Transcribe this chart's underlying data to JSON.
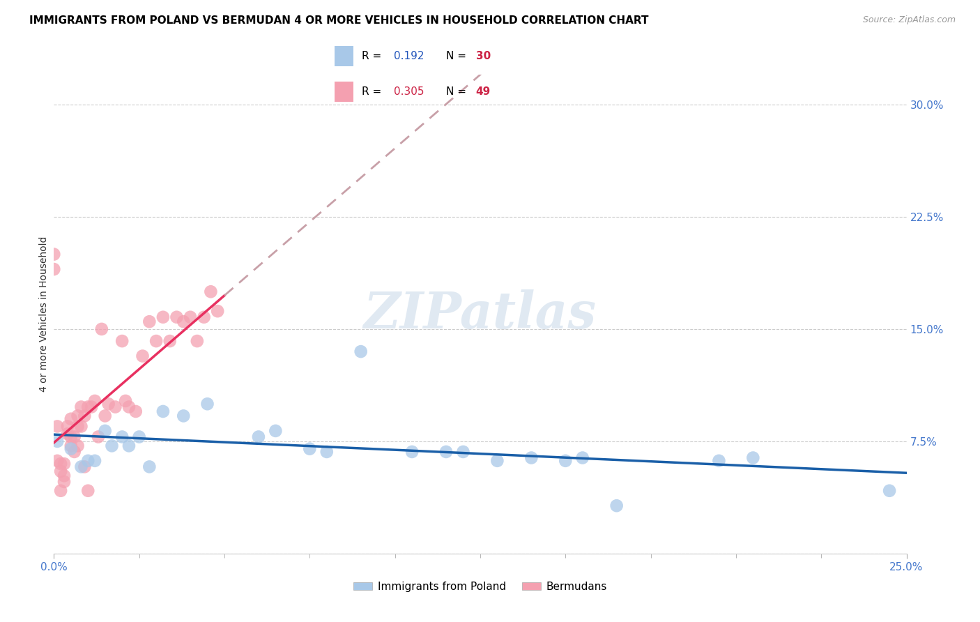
{
  "title": "IMMIGRANTS FROM POLAND VS BERMUDAN 4 OR MORE VEHICLES IN HOUSEHOLD CORRELATION CHART",
  "source": "Source: ZipAtlas.com",
  "ylabel": "4 or more Vehicles in Household",
  "xlim": [
    0.0,
    0.25
  ],
  "ylim": [
    0.0,
    0.32
  ],
  "xtick_positions": [
    0.0,
    0.25
  ],
  "xtick_labels": [
    "0.0%",
    "25.0%"
  ],
  "ytick_positions": [
    0.0,
    0.075,
    0.15,
    0.225,
    0.3
  ],
  "ytick_labels": [
    "",
    "7.5%",
    "15.0%",
    "22.5%",
    "30.0%"
  ],
  "poland_x": [
    0.001,
    0.005,
    0.008,
    0.01,
    0.012,
    0.015,
    0.017,
    0.02,
    0.022,
    0.025,
    0.028,
    0.032,
    0.038,
    0.045,
    0.06,
    0.065,
    0.075,
    0.08,
    0.09,
    0.105,
    0.115,
    0.12,
    0.13,
    0.14,
    0.15,
    0.155,
    0.165,
    0.195,
    0.205,
    0.245
  ],
  "poland_y": [
    0.075,
    0.07,
    0.058,
    0.062,
    0.062,
    0.082,
    0.072,
    0.078,
    0.072,
    0.078,
    0.058,
    0.095,
    0.092,
    0.1,
    0.078,
    0.082,
    0.07,
    0.068,
    0.135,
    0.068,
    0.068,
    0.068,
    0.062,
    0.064,
    0.062,
    0.064,
    0.032,
    0.062,
    0.064,
    0.042
  ],
  "bermuda_x": [
    0.0,
    0.0,
    0.001,
    0.001,
    0.002,
    0.002,
    0.002,
    0.003,
    0.003,
    0.003,
    0.004,
    0.004,
    0.005,
    0.005,
    0.005,
    0.006,
    0.006,
    0.007,
    0.007,
    0.007,
    0.008,
    0.008,
    0.009,
    0.009,
    0.01,
    0.01,
    0.011,
    0.012,
    0.013,
    0.014,
    0.015,
    0.016,
    0.018,
    0.02,
    0.021,
    0.022,
    0.024,
    0.026,
    0.028,
    0.03,
    0.032,
    0.034,
    0.036,
    0.038,
    0.04,
    0.042,
    0.044,
    0.046,
    0.048
  ],
  "bermuda_y": [
    0.2,
    0.19,
    0.085,
    0.062,
    0.042,
    0.055,
    0.06,
    0.048,
    0.052,
    0.06,
    0.08,
    0.085,
    0.072,
    0.078,
    0.09,
    0.068,
    0.078,
    0.072,
    0.092,
    0.085,
    0.098,
    0.085,
    0.092,
    0.058,
    0.098,
    0.042,
    0.098,
    0.102,
    0.078,
    0.15,
    0.092,
    0.1,
    0.098,
    0.142,
    0.102,
    0.098,
    0.095,
    0.132,
    0.155,
    0.142,
    0.158,
    0.142,
    0.158,
    0.155,
    0.158,
    0.142,
    0.158,
    0.175,
    0.162
  ],
  "poland_scatter_color": "#a8c8e8",
  "bermuda_scatter_color": "#f4a0b0",
  "poland_trend_color": "#1a5fa8",
  "bermuda_trend_solid_color": "#e83060",
  "bermuda_trend_dashed_color": "#c8a0a8",
  "axis_tick_color": "#4477cc",
  "ylabel_color": "#333333",
  "watermark_color": "#c8d8e8",
  "grid_color": "#cccccc",
  "background_color": "#ffffff",
  "legend_R_color": "#2255bb",
  "legend_N_color": "#cc2244",
  "legend_R2_color": "#cc2244",
  "legend_N2_color": "#cc2244"
}
